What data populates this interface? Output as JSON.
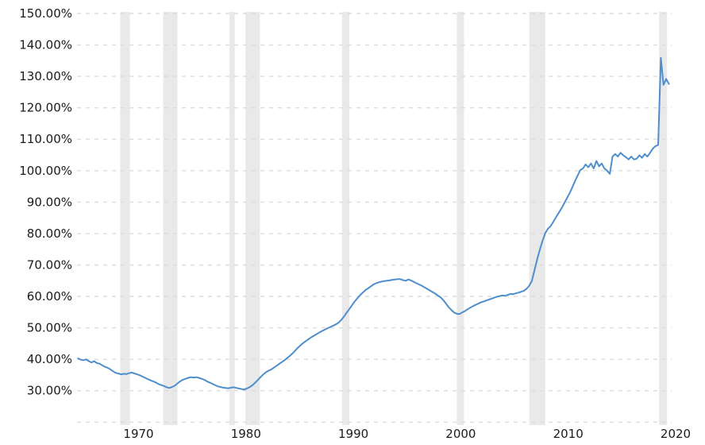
{
  "chart_data": {
    "type": "line",
    "title": "",
    "series": [
      {
        "name": "debt-to-gdp-percent",
        "start_year": 1966,
        "interval_years": 0.25,
        "values": [
          40.3,
          39.9,
          39.7,
          40.0,
          39.4,
          39.0,
          39.4,
          38.8,
          38.6,
          38.1,
          37.6,
          37.3,
          36.8,
          36.2,
          35.7,
          35.5,
          35.2,
          35.4,
          35.3,
          35.6,
          35.8,
          35.5,
          35.2,
          34.9,
          34.5,
          34.1,
          33.7,
          33.3,
          33.0,
          32.6,
          32.1,
          31.8,
          31.5,
          31.1,
          30.9,
          31.2,
          31.6,
          32.3,
          33.0,
          33.5,
          33.8,
          34.1,
          34.3,
          34.2,
          34.3,
          34.1,
          33.8,
          33.5,
          33.0,
          32.6,
          32.2,
          31.8,
          31.4,
          31.2,
          31.0,
          30.9,
          30.8,
          31.0,
          31.1,
          30.9,
          30.7,
          30.5,
          30.4,
          30.8,
          31.2,
          31.8,
          32.6,
          33.5,
          34.4,
          35.2,
          35.9,
          36.4,
          36.8,
          37.4,
          38.0,
          38.6,
          39.2,
          39.8,
          40.5,
          41.2,
          42.0,
          42.9,
          43.8,
          44.6,
          45.3,
          45.9,
          46.5,
          47.1,
          47.6,
          48.1,
          48.6,
          49.1,
          49.5,
          49.9,
          50.3,
          50.7,
          51.1,
          51.7,
          52.5,
          53.6,
          54.8,
          56.0,
          57.2,
          58.4,
          59.4,
          60.4,
          61.2,
          62.0,
          62.6,
          63.2,
          63.8,
          64.2,
          64.5,
          64.7,
          64.9,
          65.0,
          65.1,
          65.3,
          65.4,
          65.5,
          65.5,
          65.2,
          65.0,
          65.4,
          65.1,
          64.6,
          64.2,
          63.8,
          63.4,
          62.9,
          62.4,
          61.9,
          61.4,
          60.9,
          60.3,
          59.7,
          58.8,
          57.7,
          56.6,
          55.7,
          54.9,
          54.5,
          54.4,
          54.9,
          55.3,
          55.9,
          56.4,
          56.9,
          57.3,
          57.7,
          58.1,
          58.4,
          58.7,
          59.0,
          59.3,
          59.6,
          59.9,
          60.1,
          60.3,
          60.2,
          60.5,
          60.8,
          60.7,
          61.0,
          61.2,
          61.5,
          61.8,
          62.4,
          63.4,
          65.0,
          68.5,
          72.0,
          75.0,
          77.8,
          80.2,
          81.6,
          82.4,
          83.8,
          85.2,
          86.6,
          88.0,
          89.6,
          91.2,
          92.8,
          94.6,
          96.6,
          98.4,
          100.2,
          100.7,
          102.0,
          101.1,
          102.3,
          100.7,
          103.1,
          101.4,
          102.3,
          100.7,
          100.0,
          99.0,
          104.5,
          105.3,
          104.5,
          105.7,
          104.9,
          104.3,
          103.6,
          104.5,
          103.6,
          103.8,
          104.9,
          104.1,
          105.3,
          104.5,
          105.7,
          107.0,
          107.8,
          108.2,
          135.9,
          127.3,
          129.2,
          127.6
        ]
      }
    ],
    "x_axis": {
      "tick_years": [
        1970,
        1980,
        1990,
        2000,
        2010,
        2020
      ],
      "range": [
        1965.9,
        2021.55
      ]
    },
    "y_axis": {
      "tick_labels": [
        "150.00%",
        "140.00%",
        "130.00%",
        "120.00%",
        "110.00%",
        "100.00%",
        "90.00%",
        "80.00%",
        "70.00%",
        "60.00%",
        "50.00%",
        "40.00%",
        "30.00%"
      ],
      "tick_values": [
        150,
        140,
        130,
        120,
        110,
        100,
        90,
        80,
        70,
        60,
        50,
        40,
        30
      ],
      "gridline_values": [
        150,
        140,
        130,
        120,
        110,
        100,
        90,
        80,
        70,
        60,
        50,
        40,
        30,
        20
      ],
      "range": [
        20,
        150
      ]
    },
    "recession_bands": [
      [
        1969.92,
        1970.83
      ],
      [
        1973.92,
        1975.25
      ],
      [
        1980.08,
        1980.58
      ],
      [
        1981.58,
        1982.92
      ],
      [
        1990.58,
        1991.25
      ],
      [
        2001.25,
        2001.92
      ],
      [
        2008.0,
        2009.5
      ],
      [
        2020.08,
        2020.83
      ]
    ],
    "grid": {
      "horizontal": true,
      "vertical": false,
      "dashed": true
    },
    "legend": {
      "visible": false
    },
    "colors": {
      "line": "#4e8ecd",
      "recession_band": "#e9e9e9",
      "gridline": "#dcdcdc",
      "tick_text": "#1b1b1b",
      "background": "#ffffff"
    }
  }
}
